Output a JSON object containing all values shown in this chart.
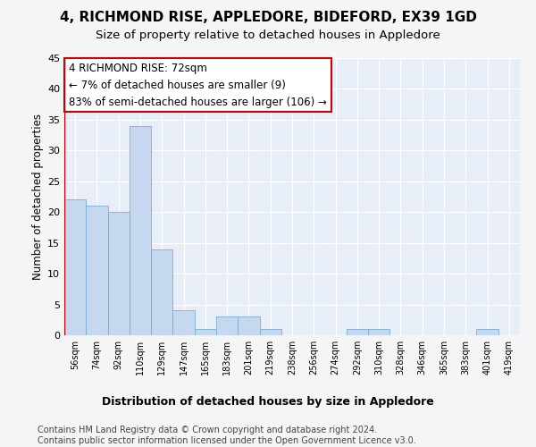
{
  "title": "4, RICHMOND RISE, APPLEDORE, BIDEFORD, EX39 1GD",
  "subtitle": "Size of property relative to detached houses in Appledore",
  "xlabel": "Distribution of detached houses by size in Appledore",
  "ylabel": "Number of detached properties",
  "bar_color": "#c5d8f0",
  "bar_edge_color": "#7aadd4",
  "background_color": "#e8eef8",
  "grid_color": "#ffffff",
  "categories": [
    "56sqm",
    "74sqm",
    "92sqm",
    "110sqm",
    "129sqm",
    "147sqm",
    "165sqm",
    "183sqm",
    "201sqm",
    "219sqm",
    "238sqm",
    "256sqm",
    "274sqm",
    "292sqm",
    "310sqm",
    "328sqm",
    "346sqm",
    "365sqm",
    "383sqm",
    "401sqm",
    "419sqm"
  ],
  "values": [
    22,
    21,
    20,
    34,
    14,
    4,
    1,
    3,
    3,
    1,
    0,
    0,
    0,
    1,
    1,
    0,
    0,
    0,
    0,
    1,
    0
  ],
  "ylim": [
    0,
    45
  ],
  "yticks": [
    0,
    5,
    10,
    15,
    20,
    25,
    30,
    35,
    40,
    45
  ],
  "annotation_text": "4 RICHMOND RISE: 72sqm\n← 7% of detached houses are smaller (9)\n83% of semi-detached houses are larger (106) →",
  "annotation_box_color": "#ffffff",
  "annotation_box_edge_color": "#cc0000",
  "footer": "Contains HM Land Registry data © Crown copyright and database right 2024.\nContains public sector information licensed under the Open Government Licence v3.0.",
  "title_fontsize": 11,
  "subtitle_fontsize": 9.5,
  "annotation_fontsize": 8.5,
  "ylabel_fontsize": 8.5,
  "xlabel_fontsize": 9,
  "footer_fontsize": 7,
  "fig_facecolor": "#f5f5f5"
}
